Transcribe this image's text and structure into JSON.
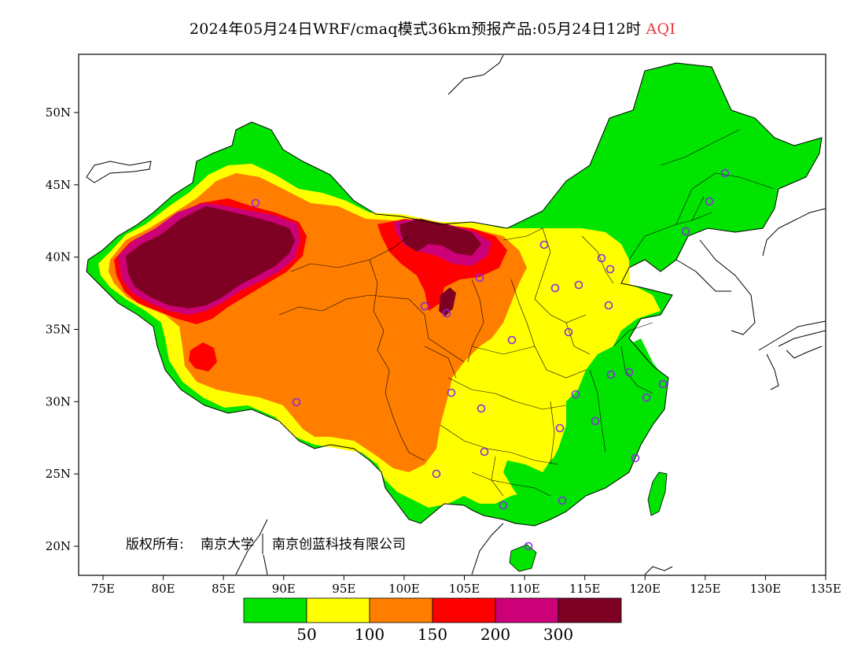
{
  "header": {
    "title": "2024年05月24日WRF/cmaq模式36km预报产品:05月24日12时",
    "variable": "AQI"
  },
  "axes": {
    "x_ticks": [
      "75E",
      "80E",
      "85E",
      "90E",
      "95E",
      "100E",
      "105E",
      "110E",
      "115E",
      "120E",
      "125E",
      "130E",
      "135E"
    ],
    "y_ticks": [
      "50N",
      "45N",
      "40N",
      "35N",
      "30N",
      "25N",
      "20N"
    ]
  },
  "copyright": {
    "label": "版权所有:",
    "org1": "南京大学",
    "org2": "南京创蓝科技有限公司"
  },
  "legend": {
    "colors": [
      "#00e400",
      "#ffff00",
      "#ff7e00",
      "#ff0000",
      "#cc0077",
      "#7e0023"
    ],
    "thresholds": [
      "50",
      "100",
      "150",
      "200",
      "300"
    ]
  }
}
